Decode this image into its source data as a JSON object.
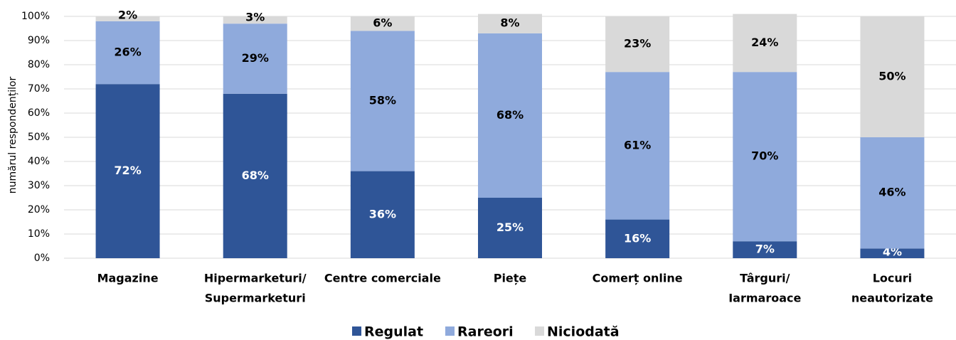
{
  "chart_data": {
    "type": "stacked_bar",
    "y_label": "numărul respondenților",
    "categories": [
      [
        "Magazine"
      ],
      [
        "Hipermarketuri/",
        "Supermarketuri"
      ],
      [
        "Centre comerciale"
      ],
      [
        "Piețe"
      ],
      [
        "Comerț online"
      ],
      [
        "Târguri/",
        "Iarmaroace"
      ],
      [
        "Locuri",
        "neautorizate"
      ]
    ],
    "series": [
      {
        "name": "Regulat",
        "color": "#2f5597",
        "label_color": "#ffffff",
        "values": [
          72,
          68,
          36,
          25,
          16,
          7,
          4
        ],
        "value_labels": [
          "72%",
          "68%",
          "36%",
          "25%",
          "16%",
          "7%",
          "4%"
        ]
      },
      {
        "name": "Rareori",
        "color": "#8faadc",
        "label_color": "#000000",
        "values": [
          26,
          29,
          58,
          68,
          61,
          70,
          46
        ],
        "value_labels": [
          "26%",
          "29%",
          "58%",
          "68%",
          "61%",
          "70%",
          "46%"
        ]
      },
      {
        "name": "Niciodată",
        "color": "#d9d9d9",
        "label_color": "#000000",
        "values": [
          2,
          3,
          6,
          8,
          23,
          24,
          50
        ],
        "value_labels": [
          "2%",
          "3%",
          "6%",
          "8%",
          "23%",
          "24%",
          "50%"
        ]
      }
    ],
    "ylim": [
      0,
      100
    ],
    "yticks": [
      {
        "value": 0,
        "label": "0%"
      },
      {
        "value": 10,
        "label": "10%"
      },
      {
        "value": 20,
        "label": "20%"
      },
      {
        "value": 30,
        "label": "30%"
      },
      {
        "value": 40,
        "label": "40%"
      },
      {
        "value": 50,
        "label": "50%"
      },
      {
        "value": 60,
        "label": "60%"
      },
      {
        "value": 70,
        "label": "70%"
      },
      {
        "value": 80,
        "label": "80%"
      },
      {
        "value": 90,
        "label": "90%"
      },
      {
        "value": 100,
        "label": "100%"
      }
    ],
    "grid": true,
    "legend": "bottom"
  }
}
